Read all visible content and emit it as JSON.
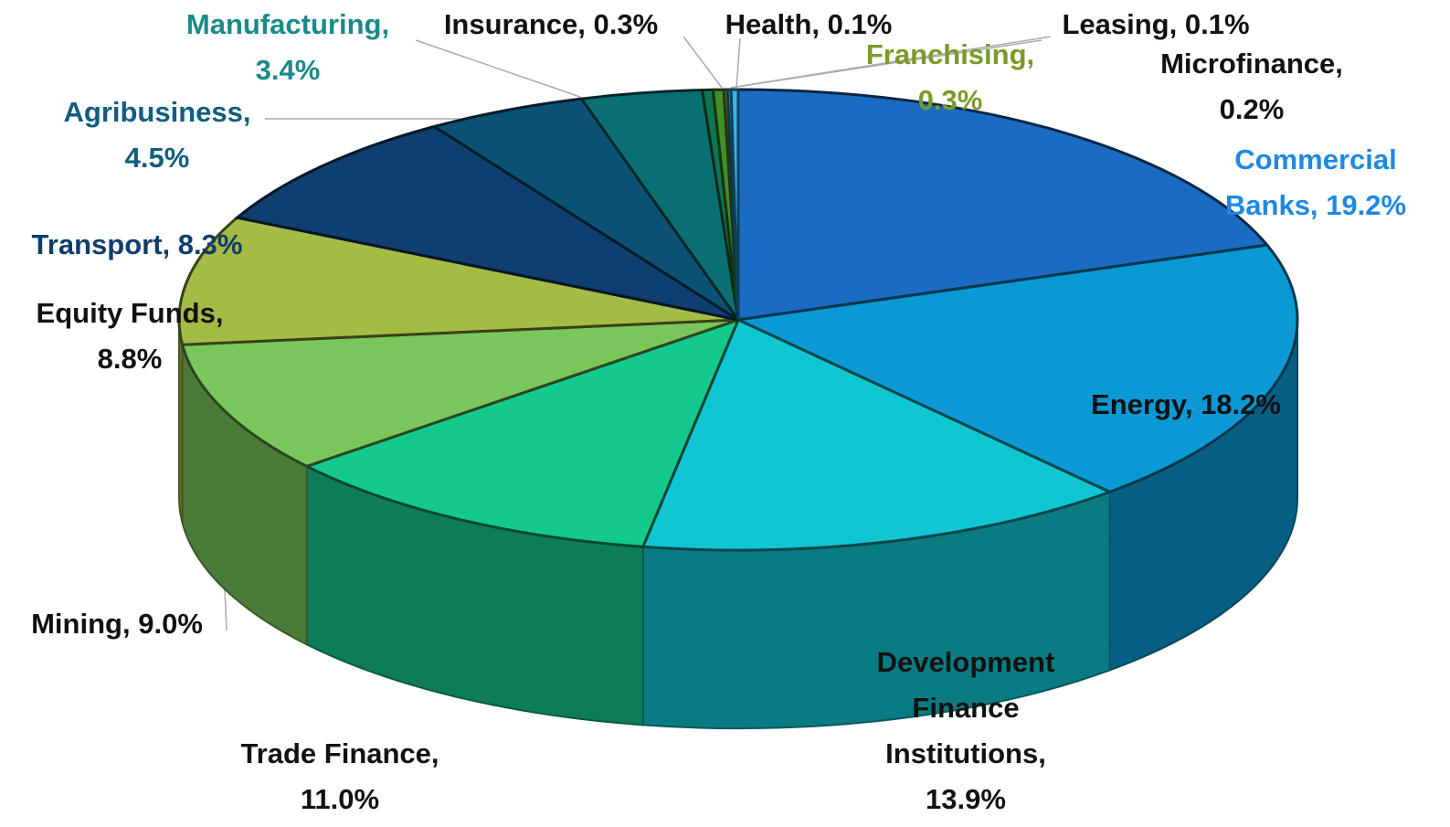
{
  "chart_data": {
    "type": "pie3d",
    "categories": [
      "Commercial Banks,",
      "Energy,",
      "Development Finance Institutions,",
      "Trade Finance,",
      "Mining,",
      "Equity Funds,",
      "Transport,",
      "Agribusiness,",
      "Manufacturing,",
      "Insurance,",
      "Franchising,",
      "Health,",
      "Leasing,",
      "Microfinance,"
    ],
    "values": [
      19.2,
      18.2,
      13.9,
      11.0,
      9.0,
      8.8,
      8.3,
      4.5,
      3.4,
      0.3,
      0.3,
      0.1,
      0.1,
      0.2
    ],
    "value_labels": [
      "19.2%",
      "18.2%",
      "13.9%",
      "11.0%",
      "9.0%",
      "8.8%",
      "8.3%",
      "4.5%",
      "3.4%",
      "0.3%",
      "0.3%",
      "0.1%",
      "0.1%",
      "0.2%"
    ],
    "colors": [
      "#1a6cc2",
      "#0a99d4",
      "#10c6d2",
      "#13c98e",
      "#79c65a",
      "#a4bb45",
      "#0f3f70",
      "#0b5274",
      "#0a6f73",
      "#0d7550",
      "#3f8f2a",
      "#7a8a20",
      "#1ca0e0",
      "#33b5f0"
    ],
    "label_colors": [
      "#1e88e5",
      "#111111",
      "#111111",
      "#111111",
      "#111111",
      "#111111",
      "#0f3d6d",
      "#0e5f7e",
      "#1a8a88",
      "#111111",
      "#7a9a2a",
      "#111111",
      "#111111",
      "#111111"
    ]
  }
}
